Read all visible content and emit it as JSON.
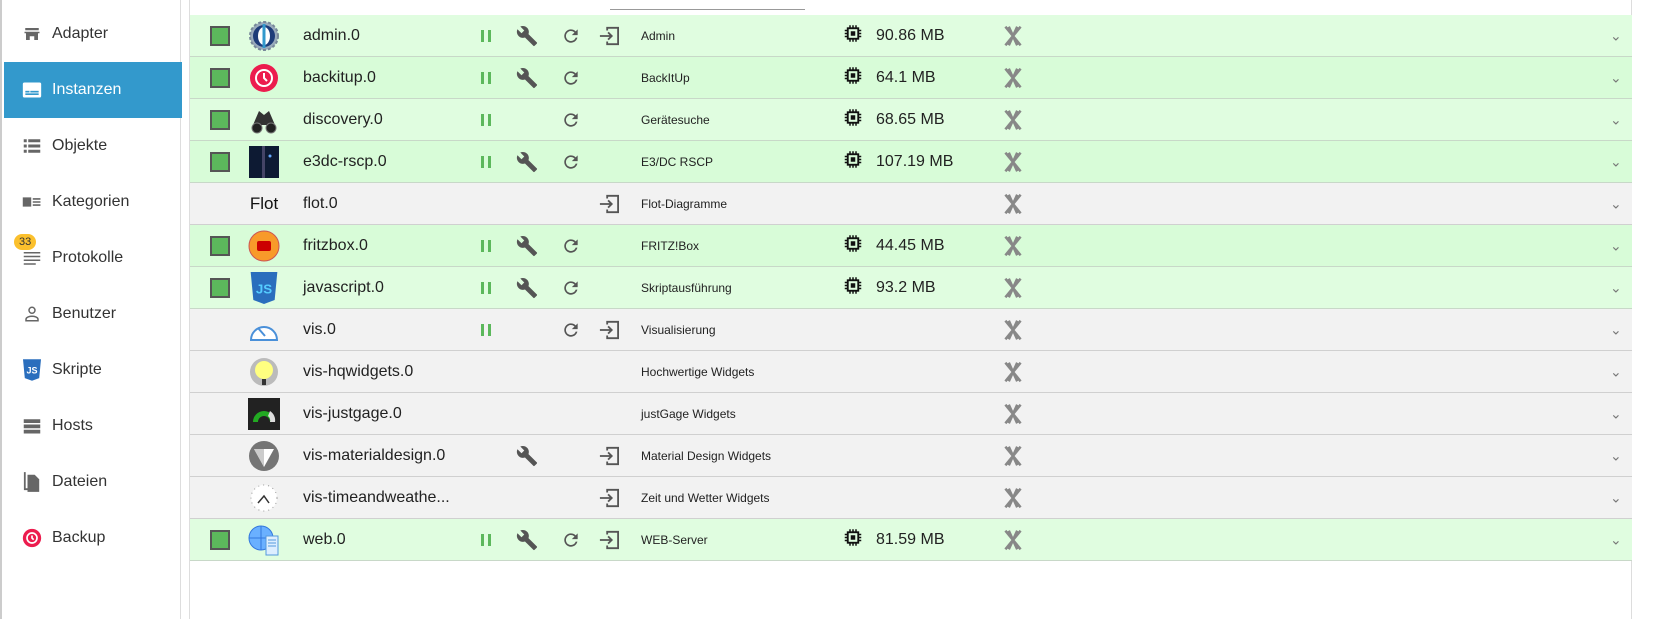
{
  "sidebar": {
    "items": [
      {
        "label": "Adapter",
        "icon": "store-icon"
      },
      {
        "label": "Instanzen",
        "icon": "instances-icon",
        "active": true
      },
      {
        "label": "Objekte",
        "icon": "list-icon"
      },
      {
        "label": "Kategorien",
        "icon": "categories-icon"
      },
      {
        "label": "Protokolle",
        "icon": "log-icon",
        "badge": "33"
      },
      {
        "label": "Benutzer",
        "icon": "user-icon"
      },
      {
        "label": "Skripte",
        "icon": "javascript-icon"
      },
      {
        "label": "Hosts",
        "icon": "hosts-icon"
      },
      {
        "label": "Dateien",
        "icon": "files-icon"
      },
      {
        "label": "Backup",
        "icon": "backup-icon"
      }
    ]
  },
  "colors": {
    "accent": "#3399cc",
    "running_row": "#e0fde0",
    "stopped_row": "#f2f2f2",
    "status_green": "#5cb85c",
    "badge": "#fbc02d"
  },
  "instances": [
    {
      "name": "admin.0",
      "title": "Admin",
      "memory": "90.86 MB",
      "icon": "admin-icon",
      "running": true,
      "pause": true,
      "wrench": true,
      "refresh": true,
      "login": true
    },
    {
      "name": "backitup.0",
      "title": "BackItUp",
      "memory": "64.1 MB",
      "icon": "backitup-icon",
      "running": true,
      "pause": true,
      "wrench": true,
      "refresh": true,
      "login": false
    },
    {
      "name": "discovery.0",
      "title": "Gerätesuche",
      "memory": "68.65 MB",
      "icon": "binoculars-icon",
      "running": true,
      "pause": true,
      "wrench": false,
      "refresh": true,
      "login": false
    },
    {
      "name": "e3dc-rscp.0",
      "title": "E3/DC RSCP",
      "memory": "107.19 MB",
      "icon": "e3dc-icon",
      "running": true,
      "pause": true,
      "wrench": true,
      "refresh": true,
      "login": false
    },
    {
      "name": "flot.0",
      "title": "Flot-Diagramme",
      "memory": "",
      "icon": "flot-icon",
      "icon_text": "Flot",
      "running": false,
      "pause": false,
      "wrench": false,
      "refresh": false,
      "login": true
    },
    {
      "name": "fritzbox.0",
      "title": "FRITZ!Box",
      "memory": "44.45 MB",
      "icon": "fritzbox-icon",
      "running": true,
      "pause": true,
      "wrench": true,
      "refresh": true,
      "login": false
    },
    {
      "name": "javascript.0",
      "title": "Skriptausführung",
      "memory": "93.2 MB",
      "icon": "javascript-icon",
      "running": true,
      "pause": true,
      "wrench": true,
      "refresh": true,
      "login": false
    },
    {
      "name": "vis.0",
      "title": "Visualisierung",
      "memory": "",
      "icon": "gauge-icon",
      "running": false,
      "pause": true,
      "wrench": false,
      "refresh": true,
      "login": true
    },
    {
      "name": "vis-hqwidgets.0",
      "title": "Hochwertige Widgets",
      "memory": "",
      "icon": "bulb-icon",
      "running": false,
      "pause": false,
      "wrench": false,
      "refresh": false,
      "login": false
    },
    {
      "name": "vis-justgage.0",
      "title": "justGage Widgets",
      "memory": "",
      "icon": "justgage-icon",
      "running": false,
      "pause": false,
      "wrench": false,
      "refresh": false,
      "login": false
    },
    {
      "name": "vis-materialdesign.0",
      "title": "Material Design Widgets",
      "memory": "",
      "icon": "materialdesign-icon",
      "running": false,
      "pause": false,
      "wrench": true,
      "refresh": false,
      "login": true
    },
    {
      "name": "vis-timeandweathe...",
      "title": "Zeit und Wetter Widgets",
      "memory": "",
      "icon": "clock-icon",
      "running": false,
      "pause": false,
      "wrench": false,
      "refresh": false,
      "login": true
    },
    {
      "name": "web.0",
      "title": "WEB-Server",
      "memory": "81.59 MB",
      "icon": "web-server-icon",
      "running": true,
      "pause": true,
      "wrench": true,
      "refresh": true,
      "login": true
    }
  ]
}
